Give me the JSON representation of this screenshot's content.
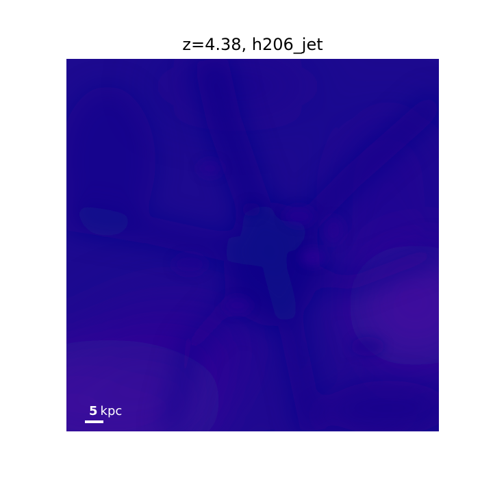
{
  "figure": {
    "title": "z=4.38, h206_jet",
    "scalebar": {
      "value": "5",
      "unit": "kpc"
    },
    "colors": {
      "base": "#1d0a90",
      "dark": "#11078a",
      "bright": "#4a08a0"
    }
  }
}
